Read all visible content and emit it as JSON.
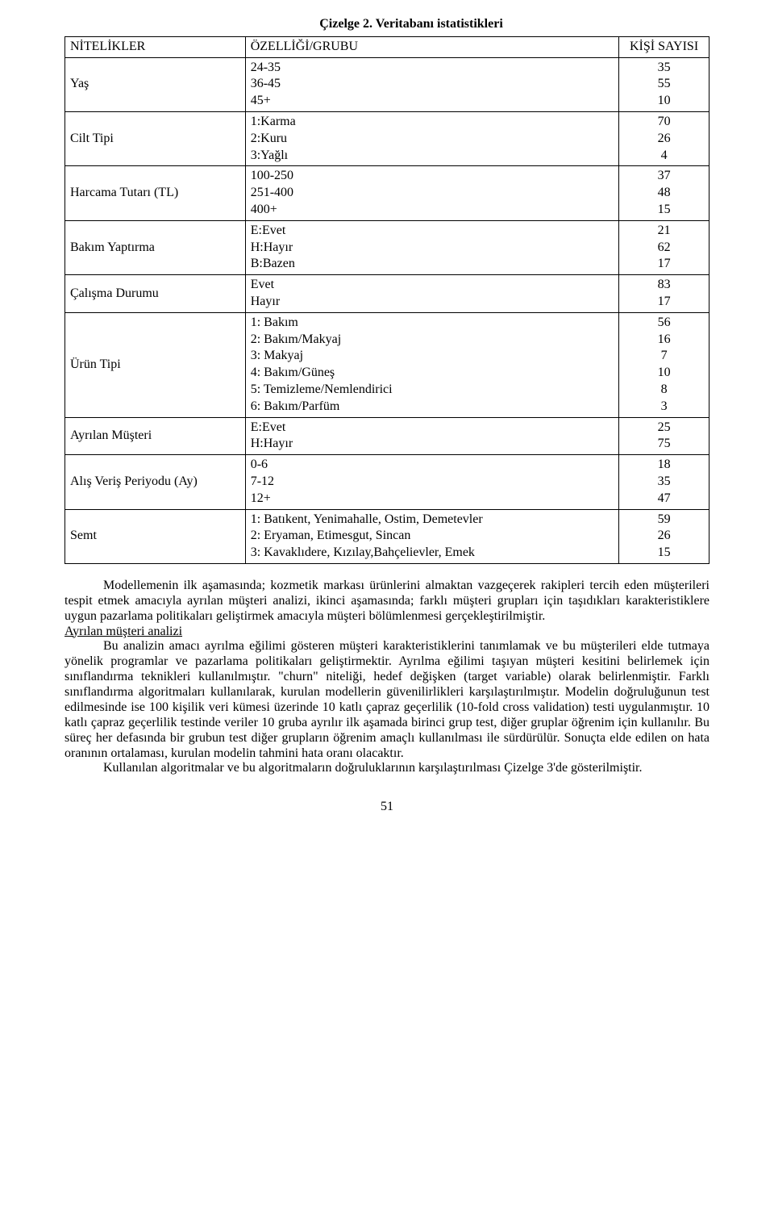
{
  "title": {
    "prefix": "Çizelge 2.",
    "rest": " Veritabanı istatistikleri"
  },
  "table": {
    "headers": {
      "attr": "NİTELİKLER",
      "feature": "ÖZELLİĞİ/GRUBU",
      "count": "KİŞİ SAYISI"
    },
    "rows": [
      {
        "attr": "Yaş",
        "feature": "24-35\n36-45\n45+",
        "count": "35\n55\n10"
      },
      {
        "attr": "Cilt Tipi",
        "feature": "1:Karma\n2:Kuru\n3:Yağlı",
        "count": "70\n26\n4"
      },
      {
        "attr": "Harcama Tutarı (TL)",
        "feature": "100-250\n251-400\n400+",
        "count": "37\n48\n15"
      },
      {
        "attr": "Bakım Yaptırma",
        "feature": "E:Evet\nH:Hayır\nB:Bazen",
        "count": "21\n62\n17"
      },
      {
        "attr": "Çalışma Durumu",
        "feature": "Evet\nHayır",
        "count": "83\n17"
      },
      {
        "attr": "Ürün Tipi",
        "feature": "1: Bakım\n2: Bakım/Makyaj\n3: Makyaj\n4: Bakım/Güneş\n5: Temizleme/Nemlendirici\n6: Bakım/Parfüm",
        "count": "56\n16\n7\n10\n8\n3"
      },
      {
        "attr": "Ayrılan Müşteri",
        "feature": "E:Evet\nH:Hayır",
        "count": "25\n75"
      },
      {
        "attr": "Alış Veriş Periyodu (Ay)",
        "feature": "0-6\n7-12\n12+",
        "count": "18\n35\n47"
      },
      {
        "attr": "Semt",
        "feature": "1: Batıkent, Yenimahalle,  Ostim, Demetevler\n2: Eryaman, Etimesgut, Sincan\n3: Kavaklıdere, Kızılay,Bahçelievler, Emek",
        "count": "59\n26\n15"
      }
    ]
  },
  "paragraphs": {
    "p1": "Modellemenin ilk aşamasında; kozmetik markası ürünlerini almaktan vazgeçerek rakipleri tercih eden müşterileri tespit etmek amacıyla ayrılan müşteri analizi, ikinci aşamasında; farklı müşteri grupları için taşıdıkları karakteristiklere uygun pazarlama politikaları geliştirmek amacıyla müşteri bölümlenmesi gerçekleştirilmiştir.",
    "p2_heading": "Ayrılan müşteri analizi",
    "p2": "Bu analizin amacı ayrılma eğilimi gösteren müşteri karakteristiklerini tanımlamak ve bu müşterileri elde tutmaya yönelik programlar ve pazarlama politikaları geliştirmektir. Ayrılma eğilimi taşıyan müşteri kesitini belirlemek için sınıflandırma teknikleri kullanılmıştır. \"churn\" niteliği,  hedef değişken (target variable) olarak belirlenmiştir. Farklı sınıflandırma algoritmaları kullanılarak, kurulan modellerin güvenilirlikleri karşılaştırılmıştır. Modelin doğruluğunun test edilmesinde ise 100 kişilik veri kümesi üzerinde 10 katlı çapraz geçerlilik (10-fold cross validation) testi uygulanmıştır. 10 katlı çapraz geçerlilik testinde veriler 10 gruba ayrılır ilk aşamada birinci grup test, diğer gruplar öğrenim için kullanılır. Bu süreç her defasında bir grubun test diğer grupların öğrenim amaçlı kullanılması ile sürdürülür. Sonuçta elde edilen on hata oranının ortalaması, kurulan modelin tahmini hata oranı olacaktır.",
    "p3": "Kullanılan algoritmalar ve bu algoritmaların doğruluklarının karşılaştırılması Çizelge 3'de  gösterilmiştir."
  },
  "page_number": "51"
}
